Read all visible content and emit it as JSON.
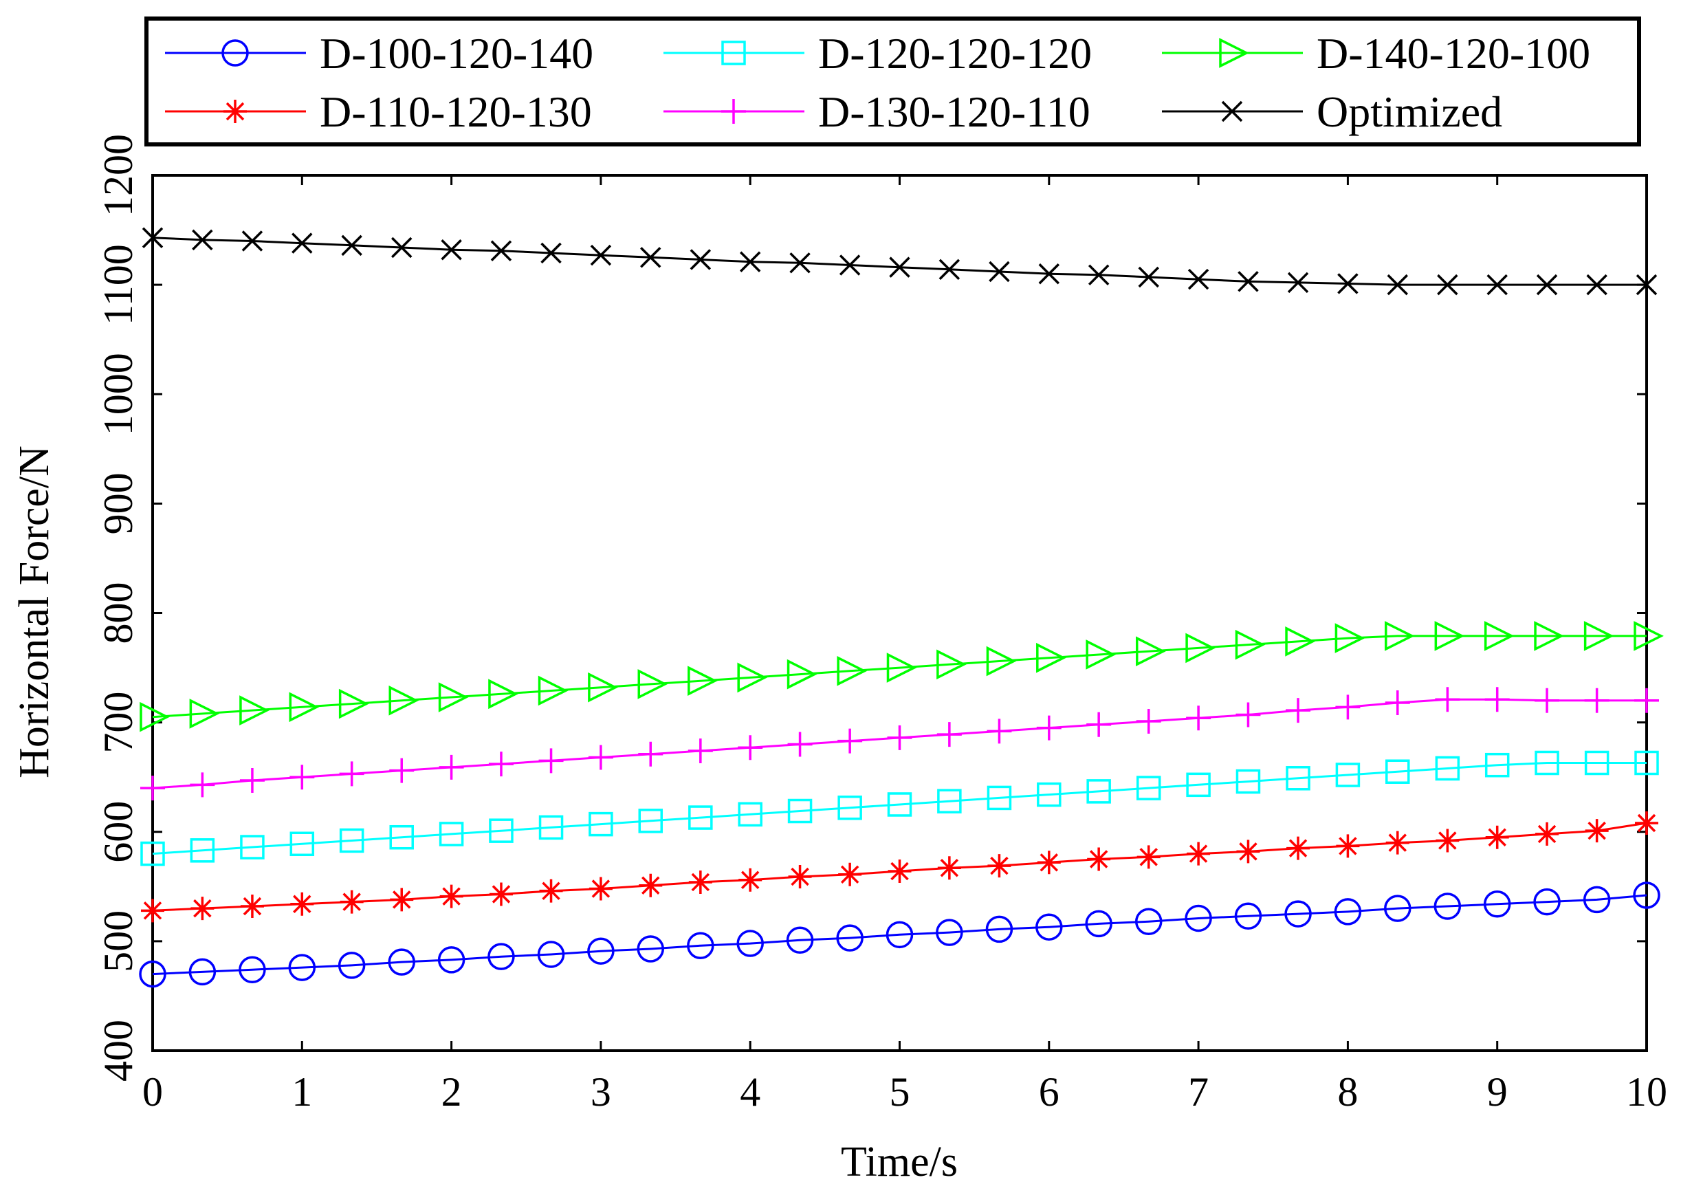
{
  "chart_data": {
    "type": "line",
    "title": "",
    "xlabel": "Time/s",
    "ylabel": "Horizontal Force/N",
    "xlim": [
      0,
      10
    ],
    "ylim": [
      400,
      1200
    ],
    "xticks": [
      "0",
      "1",
      "2",
      "3",
      "4",
      "5",
      "6",
      "7",
      "8",
      "9",
      "10"
    ],
    "yticks": [
      "400",
      "500",
      "600",
      "700",
      "800",
      "900",
      "1000",
      "1100",
      "1200"
    ],
    "grid": false,
    "legend_position": "top",
    "series": [
      {
        "name": "D-100-120-140",
        "color": "#0000ff",
        "marker": "circle",
        "values": [
          470,
          472,
          474,
          476,
          478,
          481,
          483,
          486,
          488,
          491,
          493,
          496,
          498,
          501,
          503,
          506,
          508,
          511,
          513,
          516,
          518,
          521,
          523,
          525,
          527,
          530,
          532,
          534,
          536,
          538,
          542
        ]
      },
      {
        "name": "D-110-120-130",
        "color": "#ff0000",
        "marker": "asterisk",
        "values": [
          528,
          530,
          532,
          534,
          536,
          538,
          541,
          543,
          546,
          548,
          551,
          554,
          556,
          559,
          561,
          564,
          567,
          569,
          572,
          575,
          577,
          580,
          582,
          585,
          587,
          590,
          592,
          595,
          598,
          601,
          608
        ]
      },
      {
        "name": "D-120-120-120",
        "color": "#00ffff",
        "marker": "square",
        "values": [
          580,
          583,
          586,
          589,
          592,
          595,
          598,
          601,
          604,
          607,
          610,
          613,
          616,
          619,
          622,
          625,
          628,
          631,
          634,
          637,
          640,
          643,
          646,
          649,
          652,
          655,
          658,
          661,
          663,
          663,
          663
        ]
      },
      {
        "name": "D-130-120-110",
        "color": "#ff00ff",
        "marker": "plus",
        "values": [
          640,
          643,
          647,
          650,
          653,
          656,
          659,
          662,
          665,
          668,
          671,
          674,
          677,
          680,
          683,
          686,
          689,
          692,
          695,
          698,
          701,
          704,
          707,
          711,
          714,
          718,
          721,
          721,
          720,
          720,
          720
        ]
      },
      {
        "name": "D-140-120-100",
        "color": "#00ff00",
        "marker": "triangle-right",
        "values": [
          705,
          708,
          711,
          714,
          717,
          720,
          723,
          726,
          729,
          732,
          735,
          738,
          741,
          744,
          747,
          750,
          753,
          756,
          759,
          762,
          765,
          768,
          771,
          774,
          777,
          779,
          779,
          779,
          779,
          779,
          779
        ]
      },
      {
        "name": "Optimized",
        "color": "#000000",
        "marker": "x",
        "values": [
          1143,
          1141,
          1140,
          1138,
          1136,
          1134,
          1132,
          1131,
          1129,
          1127,
          1125,
          1123,
          1121,
          1120,
          1118,
          1116,
          1114,
          1112,
          1110,
          1109,
          1107,
          1105,
          1103,
          1102,
          1101,
          1100,
          1100,
          1100,
          1100,
          1100,
          1100
        ]
      }
    ],
    "x": [
      0,
      0.333,
      0.667,
      1.0,
      1.333,
      1.667,
      2.0,
      2.333,
      2.667,
      3.0,
      3.333,
      3.667,
      4.0,
      4.333,
      4.667,
      5.0,
      5.333,
      5.667,
      6.0,
      6.333,
      6.667,
      7.0,
      7.333,
      7.667,
      8.0,
      8.333,
      8.667,
      9.0,
      9.333,
      9.667,
      10.0
    ],
    "legend_order": [
      "D-100-120-140",
      "D-120-120-120",
      "D-140-120-100",
      "D-110-120-130",
      "D-130-120-110",
      "Optimized"
    ]
  }
}
